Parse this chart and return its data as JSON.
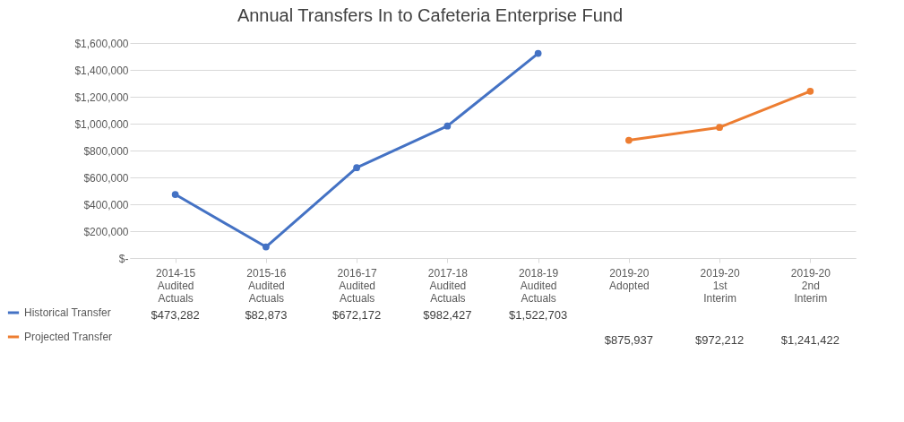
{
  "chart_data": {
    "type": "line",
    "title": "Annual Transfers In to Cafeteria Enterprise Fund",
    "categories": [
      "2014-15 Audited Actuals",
      "2015-16 Audited Actuals",
      "2016-17 Audited Actuals",
      "2017-18 Audited Actuals",
      "2018-19 Audited Actuals",
      "2019-20 Adopted",
      "2019-20 1st Interim",
      "2019-20 2nd Interim"
    ],
    "series": [
      {
        "name": "Historical Transfer",
        "color": "#4472c4",
        "values": [
          473282,
          82873,
          672172,
          982427,
          1522703,
          null,
          null,
          null
        ],
        "value_labels": [
          "$473,282",
          "$82,873",
          "$672,172",
          "$982,427",
          "$1,522,703",
          null,
          null,
          null
        ]
      },
      {
        "name": "Projected Transfer",
        "color": "#ed7d31",
        "values": [
          null,
          null,
          null,
          null,
          null,
          875937,
          972212,
          1241422
        ],
        "value_labels": [
          null,
          null,
          null,
          null,
          null,
          "$875,937",
          "$972,212",
          "$1,241,422"
        ]
      }
    ],
    "ylim": [
      0,
      1600000
    ],
    "yticks": [
      {
        "value": 0,
        "label": "$-"
      },
      {
        "value": 200000,
        "label": "$200,000"
      },
      {
        "value": 400000,
        "label": "$400,000"
      },
      {
        "value": 600000,
        "label": "$600,000"
      },
      {
        "value": 800000,
        "label": "$800,000"
      },
      {
        "value": 1000000,
        "label": "$1,000,000"
      },
      {
        "value": 1200000,
        "label": "$1,200,000"
      },
      {
        "value": 1400000,
        "label": "$1,400,000"
      },
      {
        "value": 1600000,
        "label": "$1,600,000"
      }
    ],
    "grid": "y",
    "marker": "circle",
    "legend": "bottom left"
  }
}
